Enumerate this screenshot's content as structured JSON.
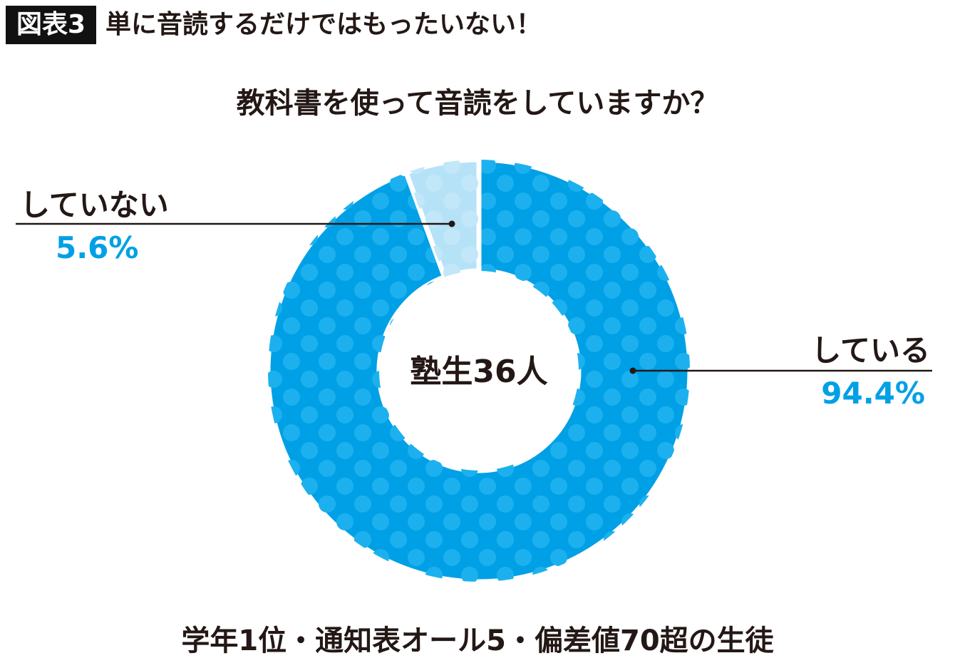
{
  "header": {
    "badge": "図表3",
    "title": "単に音読するだけではもったいない！"
  },
  "chart_data": {
    "type": "pie",
    "donut": true,
    "title": "教科書を使って音読をしていますか？",
    "center_label": "塾生36人",
    "categories": [
      "している",
      "していない"
    ],
    "values": [
      94.4,
      5.6
    ],
    "value_labels": [
      "94.4%",
      "5.6%"
    ],
    "colors": [
      "#00a0e6",
      "#b5e2f7"
    ],
    "dot_pattern_color": "#1cb1ee",
    "footnote": "学年1位・通知表オール5・偏差値70超の生徒"
  }
}
